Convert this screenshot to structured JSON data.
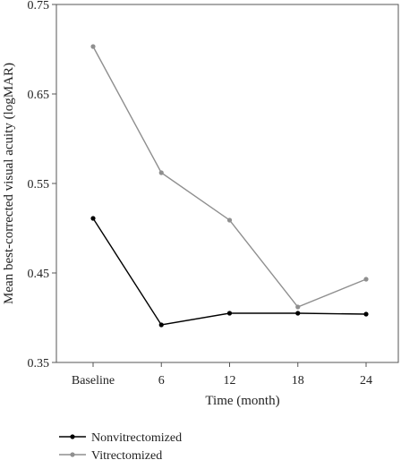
{
  "chart_data": {
    "type": "line",
    "categories": [
      "Baseline",
      "6",
      "12",
      "18",
      "24"
    ],
    "xlabel": "Time (month)",
    "ylabel": "Mean best-corrected visual acuity (logMAR)",
    "ylim": [
      0.35,
      0.75
    ],
    "yticks": [
      0.35,
      0.45,
      0.55,
      0.65,
      0.75
    ],
    "ytick_labels": [
      "0.35",
      "0.45",
      "0.55",
      "0.65",
      "0.75"
    ],
    "grid": false,
    "legend_position": "bottom-left",
    "series": [
      {
        "name": "Nonvitrectomized",
        "color": "#000000",
        "values": [
          0.511,
          0.392,
          0.405,
          0.405,
          0.404
        ]
      },
      {
        "name": "Vitrectomized",
        "color": "#8f8f8f",
        "values": [
          0.703,
          0.562,
          0.509,
          0.412,
          0.443
        ]
      }
    ]
  }
}
